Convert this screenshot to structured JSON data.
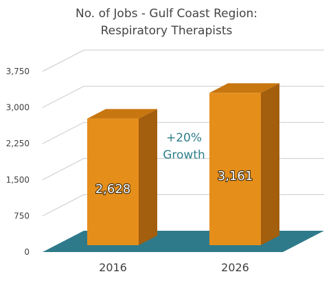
{
  "chart_data": {
    "type": "bar",
    "title_line1": "No. of Jobs - Gulf Coast Region:",
    "title_line2": "Respiratory Therapists",
    "categories": [
      "2016",
      "2026"
    ],
    "values": [
      2628,
      3161
    ],
    "value_labels": [
      "2,628",
      "3,161"
    ],
    "ylim": [
      0,
      3750
    ],
    "yticks": [
      0,
      750,
      1500,
      2250,
      3000,
      3750
    ],
    "ytick_labels": [
      "0",
      "750",
      "1,500",
      "2,250",
      "3,000",
      "3,750"
    ],
    "annotation_line1": "+20%",
    "annotation_line2": "Growth",
    "grid": true,
    "bar_color": "#e58e1a",
    "bar_side_color": "#a35e0e",
    "bar_top_color": "#c8760f",
    "floor_color": "#2e7a8a",
    "annotation_color": "#2f7f8a"
  }
}
